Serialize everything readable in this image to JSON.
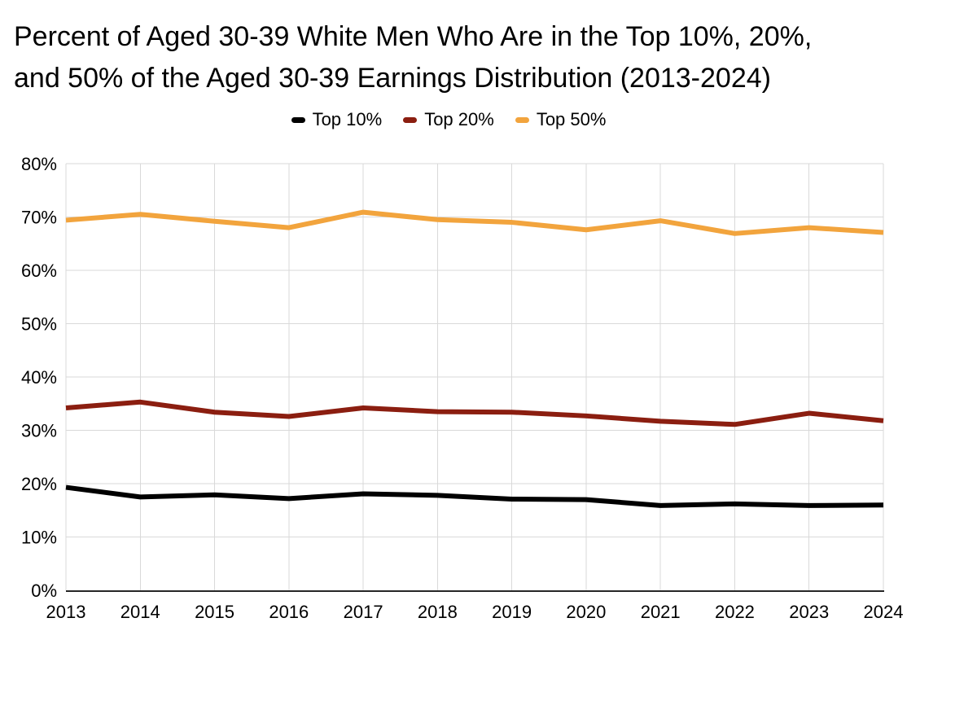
{
  "title": {
    "line1": "Percent of Aged 30-39 White Men Who Are in the Top 10%, 20%,",
    "line2": "and 50% of the Aged 30-39 Earnings Distribution (2013-2024)"
  },
  "colors": {
    "top10": "#000000",
    "top20": "#8B1E10",
    "top50": "#F2A43D",
    "gridline": "#D9D9D9",
    "axis": "#262626",
    "text": "#000000",
    "background": "#FFFFFF"
  },
  "chart_data": {
    "type": "line",
    "title": "Percent of Aged 30-39 White Men Who Are in the Top 10%, 20%, and 50% of the Aged 30-39 Earnings Distribution (2013-2024)",
    "x": [
      2013,
      2014,
      2015,
      2016,
      2017,
      2018,
      2019,
      2020,
      2021,
      2022,
      2023,
      2024
    ],
    "x_tick_labels": [
      "2013",
      "2014",
      "2015",
      "2016",
      "2017",
      "2018",
      "2019",
      "2020",
      "2021",
      "2022",
      "2023",
      "2024"
    ],
    "series": [
      {
        "key": "top10",
        "name": "Top 10%",
        "values": [
          19.3,
          17.5,
          17.9,
          17.2,
          18.1,
          17.8,
          17.1,
          17.0,
          15.9,
          16.2,
          15.9,
          16.0
        ]
      },
      {
        "key": "top20",
        "name": "Top 20%",
        "values": [
          34.2,
          35.3,
          33.4,
          32.6,
          34.2,
          33.5,
          33.4,
          32.7,
          31.7,
          31.1,
          33.2,
          31.8
        ]
      },
      {
        "key": "top50",
        "name": "Top 50%",
        "values": [
          69.4,
          70.5,
          69.2,
          68.0,
          70.9,
          69.5,
          69.0,
          67.6,
          69.3,
          66.9,
          68.0,
          67.1
        ]
      }
    ],
    "ylim": [
      0,
      80
    ],
    "y_tick_step": 10,
    "y_tick_labels": [
      "0%",
      "10%",
      "20%",
      "30%",
      "40%",
      "50%",
      "60%",
      "70%",
      "80%"
    ],
    "grid": true,
    "legend_position": "top",
    "xlabel": "",
    "ylabel": ""
  }
}
